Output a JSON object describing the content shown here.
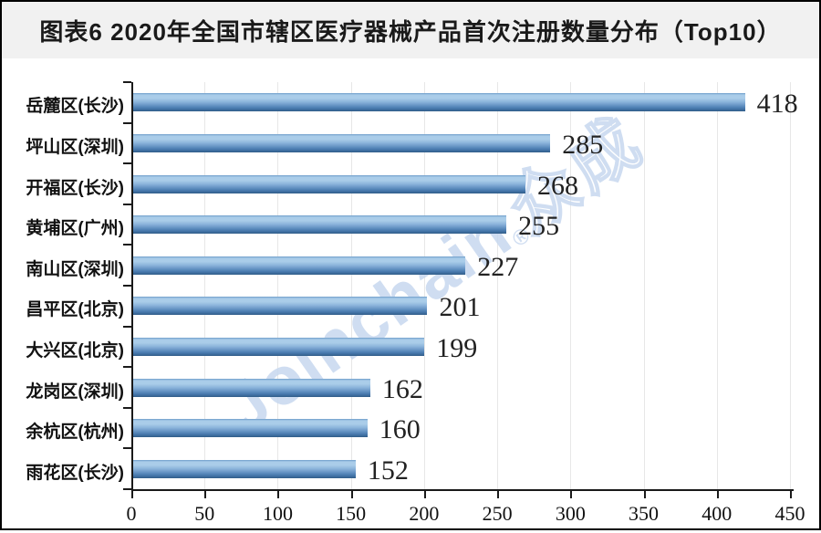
{
  "title": "图表6  2020年全国市辖区医疗器械产品首次注册数量分布（Top10）",
  "watermark": {
    "brand": "Joinchain",
    "reg": "®",
    "suffix": "众成",
    "color": "#c7d8ef"
  },
  "colors": {
    "title_bar_bg": "#f1f1f1",
    "plot_bg": "#ffffff",
    "frame_border": "#000000",
    "bar_light": "#a9cce9",
    "bar_dark": "#305d88",
    "gridline": "#e7e7e7",
    "axis": "#1a1a1a",
    "value_text": "#222222"
  },
  "chart_data": {
    "type": "bar",
    "orientation": "horizontal",
    "title": "图表6  2020年全国市辖区医疗器械产品首次注册数量分布（Top10）",
    "categories": [
      "岳麓区(长沙)",
      "坪山区(深圳)",
      "开福区(长沙)",
      "黄埔区(广州)",
      "南山区(深圳)",
      "昌平区(北京)",
      "大兴区(北京)",
      "龙岗区(深圳)",
      "余杭区(杭州)",
      "雨花区(长沙)"
    ],
    "values": [
      418,
      285,
      268,
      255,
      227,
      201,
      199,
      162,
      160,
      152
    ],
    "xlabel": "",
    "ylabel": "",
    "xlim": [
      0,
      450
    ],
    "x_ticks": [
      0,
      50,
      100,
      150,
      200,
      250,
      300,
      350,
      400,
      450
    ],
    "grid": true,
    "legend": false,
    "data_labels": true
  }
}
